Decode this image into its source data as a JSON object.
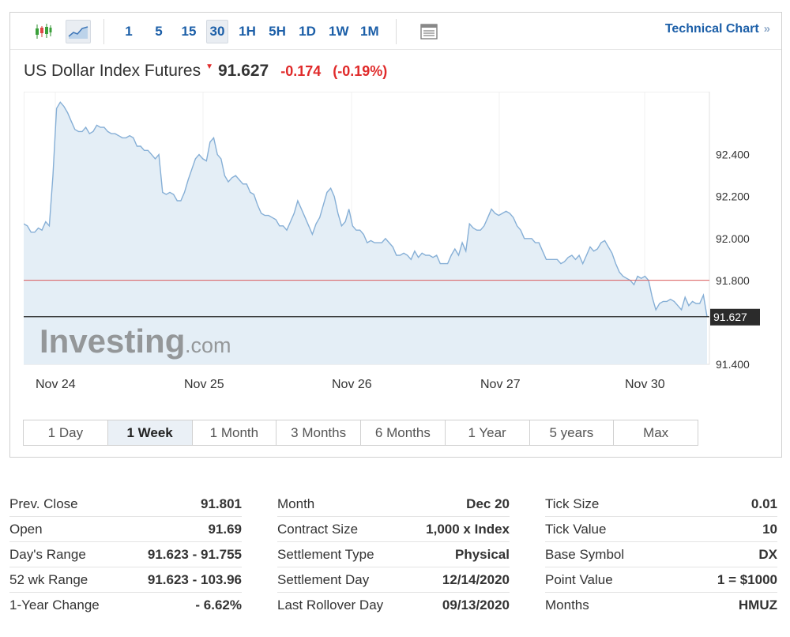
{
  "toolbar": {
    "chart_icons": [
      "candlestick-icon",
      "area-chart-icon"
    ],
    "intervals": [
      {
        "label": "1",
        "active": false
      },
      {
        "label": "5",
        "active": false
      },
      {
        "label": "15",
        "active": false
      },
      {
        "label": "30",
        "active": true
      },
      {
        "label": "1H",
        "active": false
      },
      {
        "label": "5H",
        "active": false
      },
      {
        "label": "1D",
        "active": false
      },
      {
        "label": "1W",
        "active": false
      },
      {
        "label": "1M",
        "active": false
      }
    ],
    "layout_icon": "layout-icon",
    "technical_chart_label": "Technical Chart",
    "technical_chart_arrow": "»"
  },
  "quote": {
    "name": "US Dollar Index Futures",
    "direction_icon": "down-arrow-icon",
    "last": "91.627",
    "change": "-0.174",
    "change_pct": "(-0.19%)"
  },
  "chart_data": {
    "type": "area",
    "x_labels": [
      "Nov 24",
      "Nov 25",
      "Nov 26",
      "Nov 27",
      "Nov 30"
    ],
    "y_ticks": [
      "92.400",
      "92.200",
      "92.000",
      "91.800",
      "91.400"
    ],
    "ylim": [
      91.4,
      92.7
    ],
    "prev_close": 91.801,
    "last": 91.627,
    "last_label": "91.627",
    "watermark": "Investing",
    "watermark_suffix": ".com",
    "values": [
      92.07,
      92.06,
      92.03,
      92.03,
      92.05,
      92.04,
      92.08,
      92.06,
      92.3,
      92.62,
      92.65,
      92.63,
      92.6,
      92.56,
      92.52,
      92.51,
      92.51,
      92.53,
      92.5,
      92.51,
      92.54,
      92.53,
      92.53,
      92.51,
      92.5,
      92.5,
      92.49,
      92.48,
      92.48,
      92.49,
      92.48,
      92.44,
      92.44,
      92.42,
      92.42,
      92.4,
      92.38,
      92.4,
      92.22,
      92.21,
      92.22,
      92.21,
      92.18,
      92.18,
      92.22,
      92.28,
      92.33,
      92.38,
      92.4,
      92.38,
      92.37,
      92.46,
      92.48,
      92.4,
      92.38,
      92.3,
      92.27,
      92.29,
      92.3,
      92.28,
      92.26,
      92.26,
      92.22,
      92.21,
      92.16,
      92.12,
      92.11,
      92.11,
      92.1,
      92.09,
      92.06,
      92.06,
      92.04,
      92.08,
      92.12,
      92.18,
      92.14,
      92.1,
      92.06,
      92.02,
      92.07,
      92.1,
      92.16,
      92.22,
      92.24,
      92.2,
      92.12,
      92.06,
      92.08,
      92.14,
      92.06,
      92.04,
      92.04,
      92.02,
      91.98,
      91.99,
      91.98,
      91.98,
      91.98,
      92.0,
      91.98,
      91.96,
      91.92,
      91.92,
      91.93,
      91.92,
      91.9,
      91.94,
      91.91,
      91.93,
      91.92,
      91.92,
      91.91,
      91.92,
      91.88,
      91.88,
      91.88,
      91.92,
      91.95,
      91.92,
      91.98,
      91.94,
      92.07,
      92.05,
      92.04,
      92.04,
      92.06,
      92.1,
      92.14,
      92.12,
      92.11,
      92.12,
      92.13,
      92.12,
      92.1,
      92.06,
      92.04,
      92.0,
      92.0,
      92.0,
      91.98,
      91.98,
      91.94,
      91.9,
      91.9,
      91.9,
      91.9,
      91.88,
      91.89,
      91.91,
      91.92,
      91.9,
      91.92,
      91.88,
      91.92,
      91.96,
      91.94,
      91.95,
      91.98,
      91.99,
      91.96,
      91.93,
      91.88,
      91.84,
      91.82,
      91.81,
      91.8,
      91.78,
      91.82,
      91.81,
      91.82,
      91.8,
      91.72,
      91.66,
      91.69,
      91.7,
      91.7,
      91.71,
      91.7,
      91.68,
      91.66,
      91.72,
      91.68,
      91.7,
      91.69,
      91.69,
      91.73,
      91.627
    ]
  },
  "ranges": [
    {
      "label": "1 Day",
      "active": false
    },
    {
      "label": "1 Week",
      "active": true
    },
    {
      "label": "1 Month",
      "active": false
    },
    {
      "label": "3 Months",
      "active": false
    },
    {
      "label": "6 Months",
      "active": false
    },
    {
      "label": "1 Year",
      "active": false
    },
    {
      "label": "5 years",
      "active": false
    },
    {
      "label": "Max",
      "active": false
    }
  ],
  "stats": [
    [
      {
        "label": "Prev. Close",
        "value": "91.801"
      },
      {
        "label": "Open",
        "value": "91.69"
      },
      {
        "label": "Day's Range",
        "value": "91.623 - 91.755"
      },
      {
        "label": "52 wk Range",
        "value": "91.623 - 103.96"
      },
      {
        "label": "1-Year Change",
        "value": "- 6.62%"
      }
    ],
    [
      {
        "label": "Month",
        "value": "Dec 20"
      },
      {
        "label": "Contract Size",
        "value": "1,000 x Index"
      },
      {
        "label": "Settlement Type",
        "value": "Physical"
      },
      {
        "label": "Settlement Day",
        "value": "12/14/2020"
      },
      {
        "label": "Last Rollover Day",
        "value": "09/13/2020"
      }
    ],
    [
      {
        "label": "Tick Size",
        "value": "0.01"
      },
      {
        "label": "Tick Value",
        "value": "10"
      },
      {
        "label": "Base Symbol",
        "value": "DX"
      },
      {
        "label": "Point Value",
        "value": "1 = $1000"
      },
      {
        "label": "Months",
        "value": "HMUZ"
      }
    ]
  ]
}
